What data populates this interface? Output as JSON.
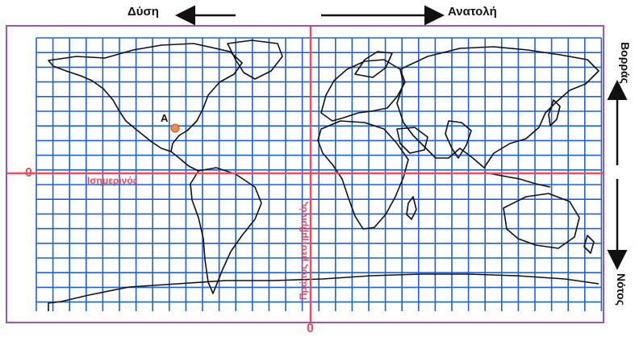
{
  "directions": {
    "west": "Δύση",
    "east": "Ανατολή",
    "north": "Βορράς",
    "south": "Νότος"
  },
  "map": {
    "equator_label": "Ισημερινός",
    "prime_meridian_label": "Πρώτος μεσημβρινός",
    "zero_left": "0",
    "zero_bottom": "0",
    "point_label": "Α",
    "colors": {
      "grid": "#1c63d6",
      "reference_lines": "#ee4b5d",
      "point": "#f08a4b",
      "frame": "#9b57b5"
    }
  }
}
